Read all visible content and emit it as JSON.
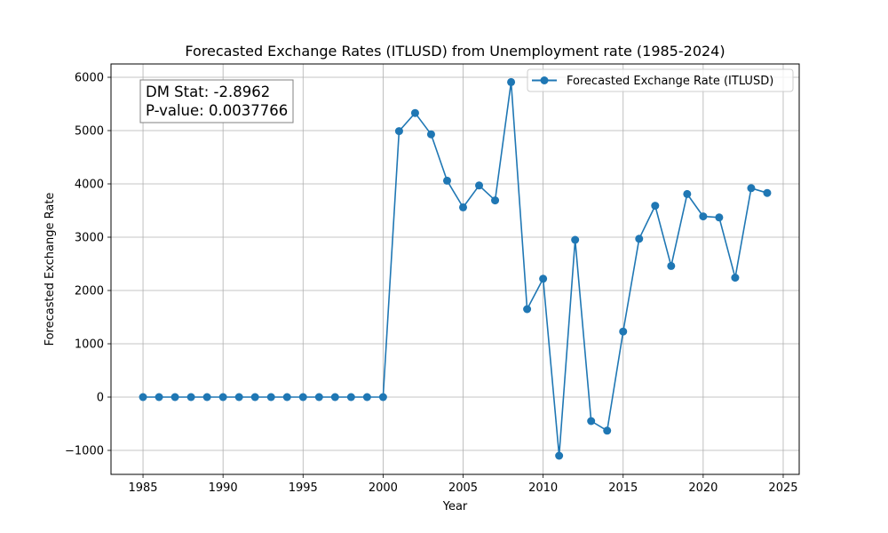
{
  "chart_data": {
    "type": "line",
    "title": "Forecasted Exchange Rates (ITLUSD) from Unemployment rate (1985-2024)",
    "xlabel": "Year",
    "ylabel": "Forecasted Exchange Rate",
    "xlim": [
      1983,
      2026
    ],
    "ylim": [
      -1450,
      6250
    ],
    "xticks": [
      1985,
      1990,
      1995,
      2000,
      2005,
      2010,
      2015,
      2020,
      2025
    ],
    "yticks": [
      -1000,
      0,
      1000,
      2000,
      3000,
      4000,
      5000,
      6000
    ],
    "ytick_labels": [
      "−1000",
      "0",
      "1000",
      "2000",
      "3000",
      "4000",
      "5000",
      "6000"
    ],
    "grid": true,
    "legend_position": "top-right",
    "series": [
      {
        "name": "Forecasted Exchange Rate (ITLUSD)",
        "color": "#1f77b4",
        "marker": "circle",
        "x": [
          1985,
          1986,
          1987,
          1988,
          1989,
          1990,
          1991,
          1992,
          1993,
          1994,
          1995,
          1996,
          1997,
          1998,
          1999,
          2000,
          2001,
          2002,
          2003,
          2004,
          2005,
          2006,
          2007,
          2008,
          2009,
          2010,
          2011,
          2012,
          2013,
          2014,
          2015,
          2016,
          2017,
          2018,
          2019,
          2020,
          2021,
          2022,
          2023,
          2024
        ],
        "y": [
          0,
          0,
          0,
          0,
          0,
          0,
          0,
          0,
          0,
          0,
          0,
          0,
          0,
          0,
          0,
          0,
          4990,
          5330,
          4930,
          4060,
          3560,
          3970,
          3690,
          5910,
          1650,
          2220,
          -1100,
          2950,
          -450,
          -630,
          1230,
          2970,
          3590,
          2460,
          3810,
          3390,
          3370,
          2240,
          3920,
          3830
        ]
      }
    ],
    "annotation": {
      "line1": "DM Stat: -2.8962",
      "line2": "P-value: 0.0037766"
    }
  }
}
